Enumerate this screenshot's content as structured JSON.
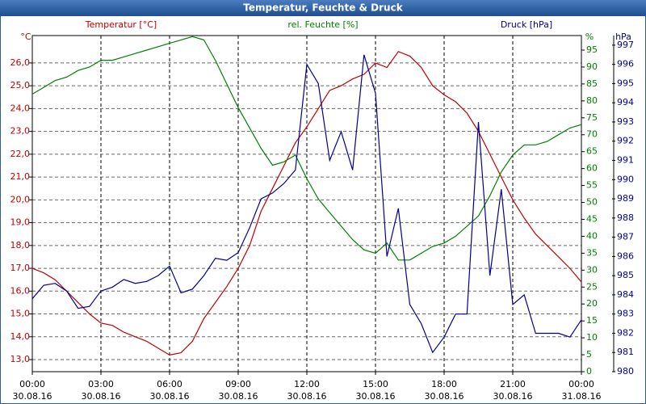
{
  "chart_data": {
    "type": "line",
    "title": "Temperatur, Feuchte & Druck",
    "grid": true,
    "xlim": [
      0,
      24
    ],
    "xticks": [
      {
        "value": 0,
        "label": "00:00",
        "date": "30.08.16"
      },
      {
        "value": 3,
        "label": "03:00",
        "date": "30.08.16"
      },
      {
        "value": 6,
        "label": "06:00",
        "date": "30.08.16"
      },
      {
        "value": 9,
        "label": "09:00",
        "date": "30.08.16"
      },
      {
        "value": 12,
        "label": "12:00",
        "date": "30.08.16"
      },
      {
        "value": 15,
        "label": "15:00",
        "date": "30.08.16"
      },
      {
        "value": 18,
        "label": "18:00",
        "date": "30.08.16"
      },
      {
        "value": 21,
        "label": "21:00",
        "date": "30.08.16"
      },
      {
        "value": 24,
        "label": "00:00",
        "date": "31.08.16"
      }
    ],
    "x": [
      0,
      0.5,
      1,
      1.5,
      2,
      2.5,
      3,
      3.5,
      4,
      4.5,
      5,
      5.5,
      6,
      6.5,
      7,
      7.5,
      8,
      8.5,
      9,
      9.5,
      10,
      10.5,
      11,
      11.5,
      12,
      12.5,
      13,
      13.5,
      14,
      14.5,
      15,
      15.5,
      16,
      16.5,
      17,
      17.5,
      18,
      18.5,
      19,
      19.5,
      20,
      20.5,
      21,
      21.5,
      22,
      22.5,
      23,
      23.5,
      24
    ],
    "series": [
      {
        "name": "Temperatur [°C]",
        "unit": "°C",
        "color": "#c00000",
        "axis": "left",
        "ylim": [
          12.47,
          27.2
        ],
        "yticks": [
          {
            "value": 13,
            "label": "13,0"
          },
          {
            "value": 14,
            "label": "14,0"
          },
          {
            "value": 15,
            "label": "15,0"
          },
          {
            "value": 16,
            "label": "16,0"
          },
          {
            "value": 17,
            "label": "17,0"
          },
          {
            "value": 18,
            "label": "18,0"
          },
          {
            "value": 19,
            "label": "19,0"
          },
          {
            "value": 20,
            "label": "20,0"
          },
          {
            "value": 21,
            "label": "21,0"
          },
          {
            "value": 22,
            "label": "22,0"
          },
          {
            "value": 23,
            "label": "23,0"
          },
          {
            "value": 24,
            "label": "24,0"
          },
          {
            "value": 25,
            "label": "25,0"
          },
          {
            "value": 26,
            "label": "26,0"
          }
        ],
        "values": [
          17.0,
          16.8,
          16.5,
          16.0,
          15.5,
          15.0,
          14.6,
          14.5,
          14.2,
          14.0,
          13.8,
          13.5,
          13.2,
          13.3,
          13.8,
          14.8,
          15.5,
          16.2,
          17.0,
          18.0,
          19.5,
          20.5,
          21.5,
          22.5,
          23.2,
          24.0,
          24.8,
          25.0,
          25.3,
          25.5,
          26.0,
          25.8,
          26.5,
          26.3,
          25.8,
          25.0,
          24.6,
          24.3,
          23.8,
          23.0,
          22.0,
          21.0,
          20.0,
          19.2,
          18.5,
          18.0,
          17.5,
          17.0,
          16.4
        ]
      },
      {
        "name": "rel. Feuchte [%]",
        "unit": "%",
        "color": "#008000",
        "axis": "right",
        "ylim": [
          0,
          99.3
        ],
        "yticks": [
          0,
          5,
          10,
          15,
          20,
          25,
          30,
          35,
          40,
          45,
          50,
          55,
          60,
          65,
          70,
          75,
          80,
          85,
          90,
          95
        ],
        "values": [
          82,
          84,
          86,
          87,
          89,
          90,
          92,
          92,
          93,
          94,
          95,
          96,
          97,
          98,
          99,
          98,
          92,
          85,
          78,
          72,
          66,
          61,
          62,
          64,
          57,
          51,
          47,
          43,
          39,
          36,
          35,
          38,
          33,
          33,
          35,
          37,
          38,
          40,
          43,
          46,
          52,
          59,
          64,
          67,
          67,
          68,
          70,
          72,
          73
        ]
      },
      {
        "name": "Druck [hPa]",
        "unit": "hPa",
        "color": "#000090",
        "axis": "far",
        "ylim": [
          980,
          997.5
        ],
        "yticks": [
          980,
          981,
          982,
          983,
          984,
          985,
          986,
          987,
          988,
          989,
          990,
          991,
          992,
          993,
          994,
          995,
          996,
          997
        ],
        "values": [
          983.8,
          984.5,
          984.6,
          984.2,
          983.3,
          983.4,
          984.2,
          984.4,
          984.8,
          984.6,
          984.7,
          985.0,
          985.5,
          984.1,
          984.3,
          985.0,
          985.9,
          985.8,
          986.2,
          987.5,
          989.0,
          989.3,
          989.8,
          990.5,
          996.0,
          995.0,
          991.0,
          992.5,
          990.5,
          996.5,
          994.5,
          986.0,
          988.5,
          983.5,
          982.5,
          981.0,
          981.8,
          983.0,
          983.0,
          993.0,
          985.0,
          989.5,
          983.5,
          984.0,
          982.0,
          982.0,
          982.0,
          981.8,
          982.7
        ]
      }
    ]
  }
}
